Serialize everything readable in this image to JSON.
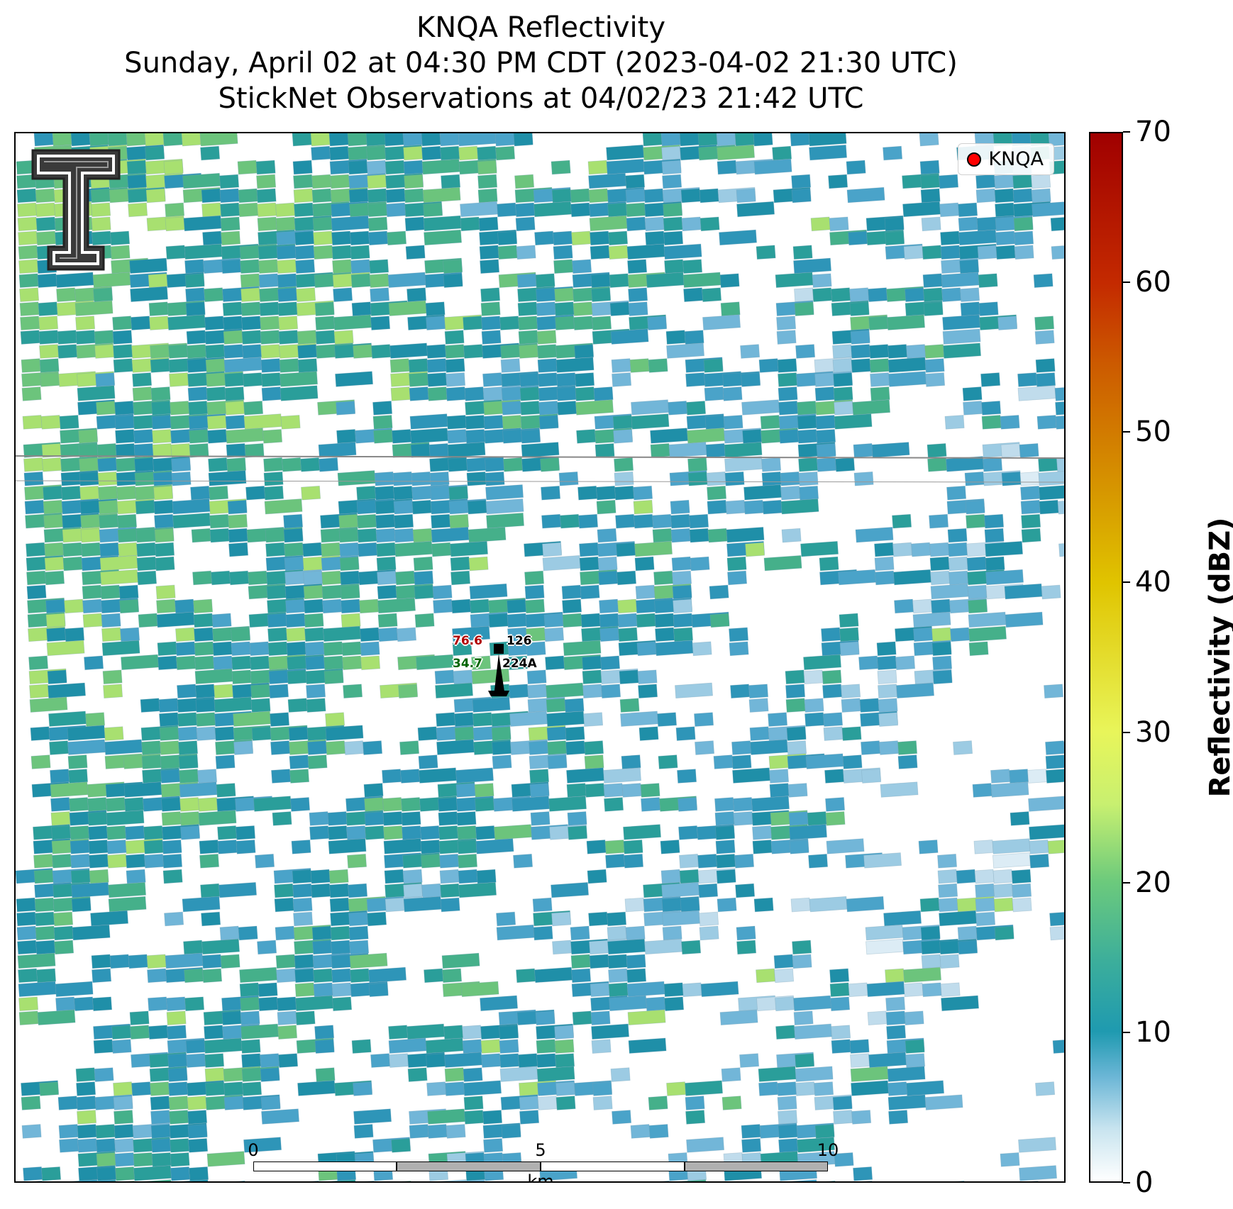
{
  "title": {
    "line1": "KNQA Reflectivity",
    "line2": "Sunday, April 02 at 04:30 PM CDT (2023-04-02 21:30 UTC)",
    "line3": "StickNet Observations at 04/02/23 21:42 UTC"
  },
  "legend": {
    "label": "KNQA",
    "marker_color": "#ff0000"
  },
  "station": {
    "temperature": "76.6",
    "temperature_color": "#b00000",
    "dewpoint": "34.7",
    "dewpoint_color": "#006400",
    "pressure_code": "126",
    "station_id": "224A"
  },
  "scale_bar": {
    "ticks": [
      "0",
      "5",
      "10"
    ],
    "unit": "km"
  },
  "colorbar": {
    "title": "Reflectivity (dBZ)",
    "ticks": [
      "0",
      "10",
      "20",
      "30",
      "40",
      "50",
      "60",
      "70"
    ],
    "min": 0,
    "max": 70,
    "colors": [
      "#ffffff",
      "#c8e4ef",
      "#6bb6d6",
      "#1f9ab0",
      "#3cae9b",
      "#6cca7c",
      "#c8f070",
      "#e8f55a",
      "#e0c400",
      "#cc5a00",
      "#a00000"
    ]
  },
  "logo": {
    "name": "texas-tech-double-t-logo"
  }
}
